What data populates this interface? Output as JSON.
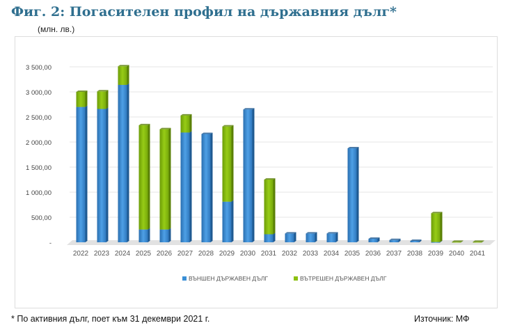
{
  "title": "Фиг. 2: Погасителен профил на държавния дълг*",
  "unit": "(млн. лв.)",
  "footnote": "* По активния дълг, поет към 31 декември 2021 г.",
  "source": "Източник: МФ",
  "chart_data": {
    "type": "bar",
    "stacked": true,
    "categories": [
      "2022",
      "2023",
      "2024",
      "2025",
      "2026",
      "2027",
      "2028",
      "2029",
      "2030",
      "2031",
      "2032",
      "2033",
      "2034",
      "2035",
      "2036",
      "2037",
      "2038",
      "2039",
      "2040",
      "2041"
    ],
    "series": [
      {
        "name": "ВЪНШЕН ДЪРЖАВЕН ДЪЛГ",
        "color": "#3a8fd6",
        "values": [
          2700,
          2660,
          3140,
          255,
          255,
          2190,
          2160,
          810,
          2650,
          160,
          175,
          175,
          175,
          1875,
          70,
          45,
          28,
          5,
          0,
          0
        ]
      },
      {
        "name": "ВЪТРЕШЕН ДЪРЖАВЕН ДЪЛГ",
        "color": "#8cc010",
        "values": [
          300,
          350,
          370,
          2080,
          2000,
          340,
          0,
          1500,
          0,
          1090,
          0,
          0,
          0,
          0,
          0,
          0,
          0,
          575,
          8,
          8
        ]
      }
    ],
    "yticks": [
      "-",
      "500,00",
      "1 000,00",
      "1 500,00",
      "2 000,00",
      "2 500,00",
      "3 000,00",
      "3 500,00"
    ],
    "ylim": [
      0,
      3500
    ],
    "grid": true,
    "legend": "bottom"
  }
}
